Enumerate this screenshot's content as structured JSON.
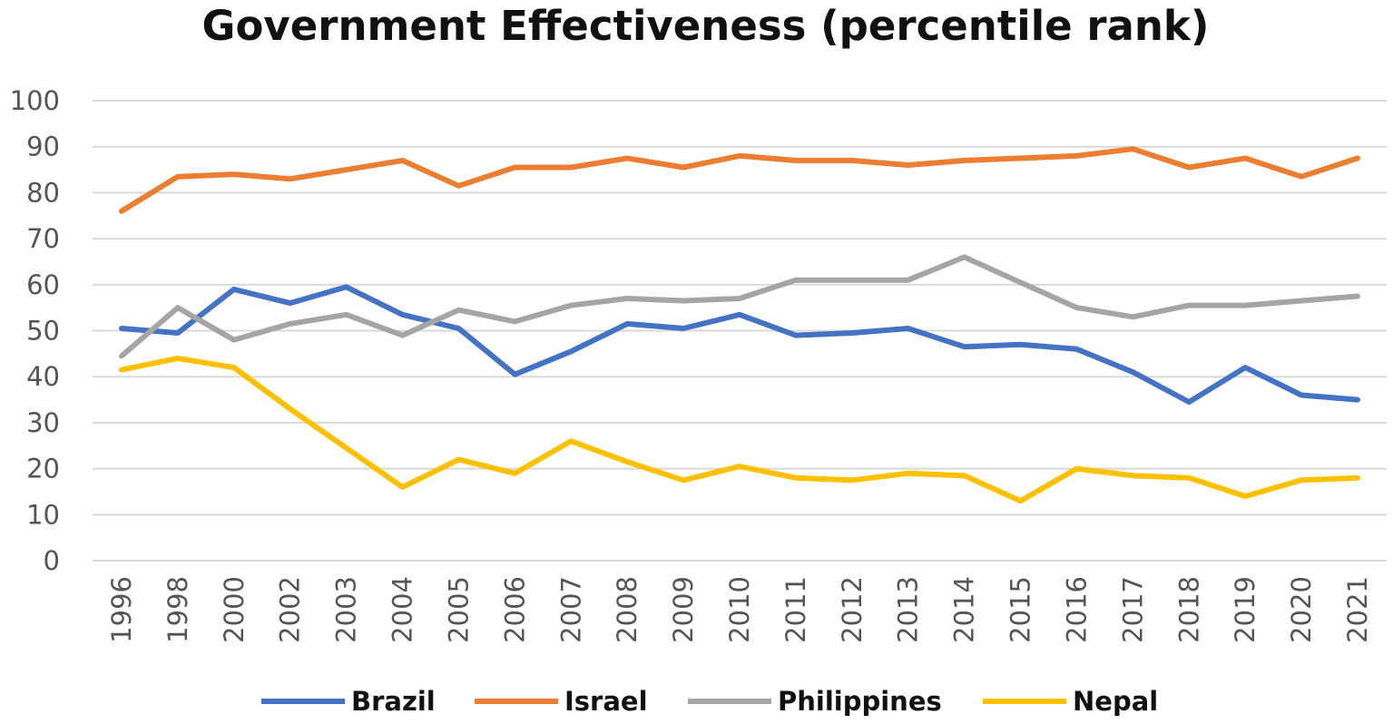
{
  "chart_data": {
    "type": "line",
    "title": "Government Effectiveness (percentile rank)",
    "xlabel": "",
    "ylabel": "",
    "ylim": [
      0,
      100
    ],
    "yticks": [
      0,
      10,
      20,
      30,
      40,
      50,
      60,
      70,
      80,
      90,
      100
    ],
    "categories": [
      "1996",
      "1998",
      "2000",
      "2002",
      "2003",
      "2004",
      "2005",
      "2006",
      "2007",
      "2008",
      "2009",
      "2010",
      "2011",
      "2012",
      "2013",
      "2014",
      "2015",
      "2016",
      "2017",
      "2018",
      "2019",
      "2020",
      "2021"
    ],
    "grid": true,
    "legend_position": "bottom",
    "series": [
      {
        "name": "Brazil",
        "color": "#4472C4",
        "values": [
          50.5,
          49.5,
          59,
          56,
          59.5,
          53.5,
          50.5,
          40.5,
          45.5,
          51.5,
          50.5,
          53.5,
          49,
          49.5,
          50.5,
          46.5,
          47,
          46,
          41,
          34.5,
          42,
          36,
          35
        ]
      },
      {
        "name": "Israel",
        "color": "#ED7D31",
        "values": [
          76,
          83.5,
          84,
          83,
          85,
          87,
          81.5,
          85.5,
          85.5,
          87.5,
          85.5,
          88,
          87,
          87,
          86,
          87,
          87.5,
          88,
          89.5,
          85.5,
          87.5,
          83.5,
          87.5
        ]
      },
      {
        "name": "Philippines",
        "color": "#A5A5A5",
        "values": [
          44.5,
          55,
          48,
          51.5,
          53.5,
          49,
          54.5,
          52,
          55.5,
          57,
          56.5,
          57,
          61,
          61,
          61,
          66,
          60.5,
          55,
          53,
          55.5,
          55.5,
          56.5,
          57.5
        ]
      },
      {
        "name": "Nepal",
        "color": "#FFC000",
        "values": [
          41.5,
          44,
          42,
          33,
          24.5,
          16,
          22,
          19,
          26,
          21.5,
          17.5,
          20.5,
          18,
          17.5,
          19,
          18.5,
          13,
          20,
          18.5,
          18,
          14,
          17.5,
          18
        ]
      }
    ]
  }
}
